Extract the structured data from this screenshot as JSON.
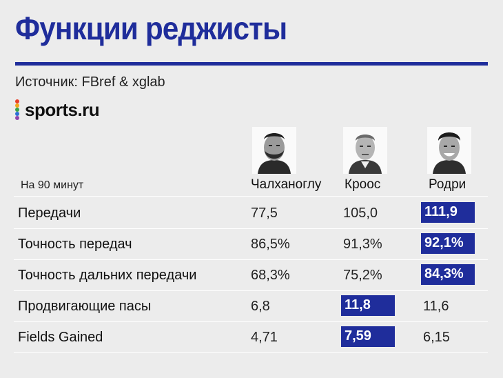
{
  "title": "Функции реджисты",
  "source": "Источник: FBref & xglab",
  "logo": {
    "text": "sports.ru",
    "dot_colors": [
      "#e8402a",
      "#f3a81c",
      "#3aa24b",
      "#2d6fd6",
      "#8e44ad"
    ]
  },
  "accent_color": "#1f2d9b",
  "header": {
    "per90_label": "На 90 минут",
    "players": [
      "Чалханоглу",
      "Кроос",
      "Родри"
    ]
  },
  "rows": [
    {
      "label": "Передачи",
      "values": [
        "77,5",
        "105,0",
        "111,9"
      ],
      "highlight": 2
    },
    {
      "label": "Точность передач",
      "values": [
        "86,5%",
        "91,3%",
        "92,1%"
      ],
      "highlight": 2
    },
    {
      "label": "Точность дальних передачи",
      "values": [
        "68,3%",
        "75,2%",
        "84,3%"
      ],
      "highlight": 2
    },
    {
      "label": "Продвигающие пасы",
      "values": [
        "6,8",
        "11,8",
        "11,6"
      ],
      "highlight": 1
    },
    {
      "label": "Fields Gained",
      "values": [
        "4,71",
        "7,59",
        "6,15"
      ],
      "highlight": 1
    }
  ]
}
